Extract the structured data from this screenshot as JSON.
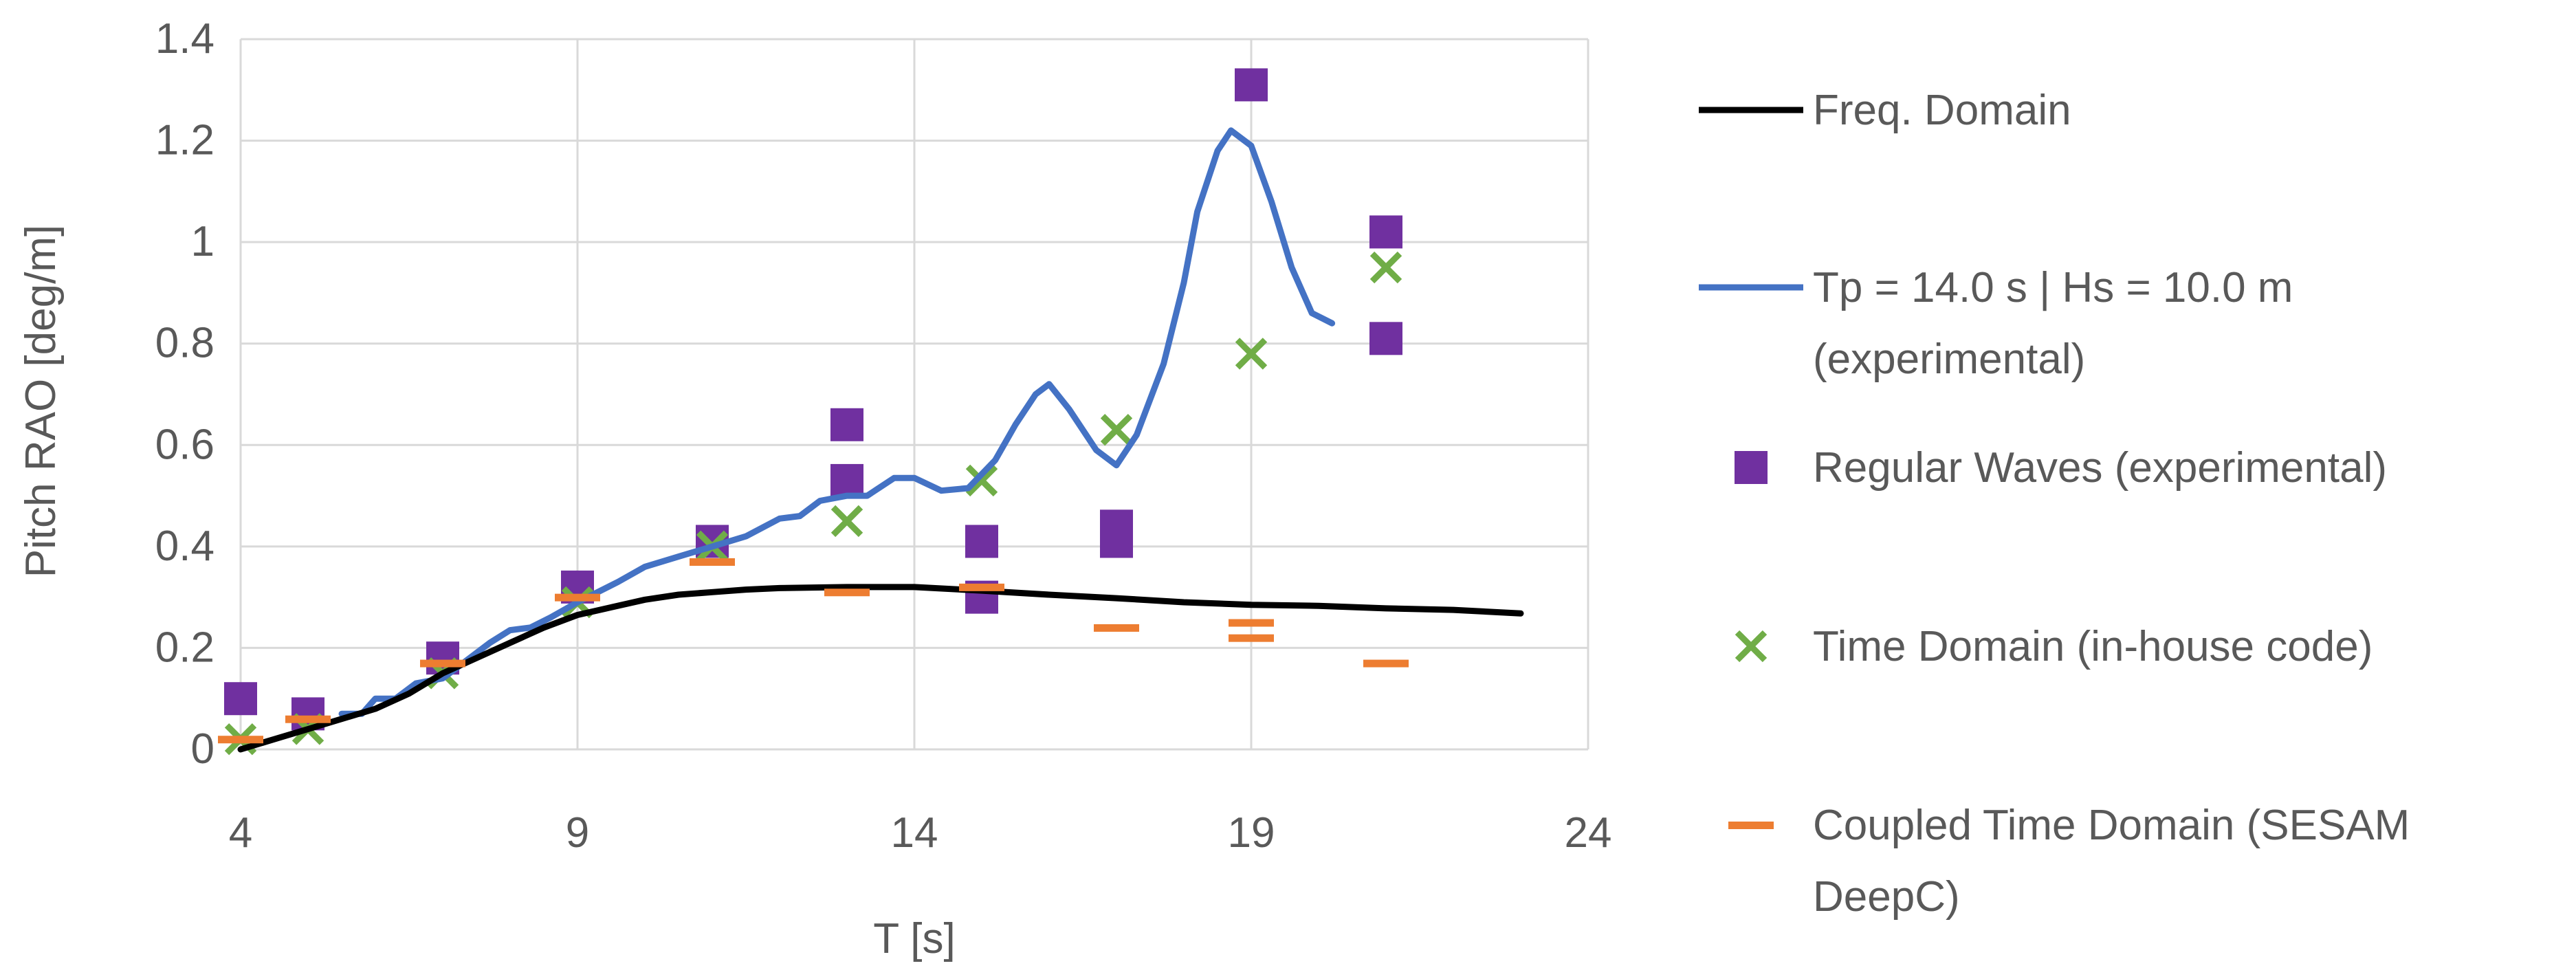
{
  "chart_data": {
    "type": "line",
    "xlabel": "T [s]",
    "ylabel": "Pitch RAO [deg/m]",
    "xlim": [
      4,
      24
    ],
    "ylim": [
      0,
      1.4
    ],
    "x_ticks": [
      "4",
      "9",
      "14",
      "19",
      "24"
    ],
    "y_ticks": [
      "0",
      "0.2",
      "0.4",
      "0.6",
      "0.8",
      "1",
      "1.2",
      "1.4"
    ],
    "grid": true,
    "legend_position": "right",
    "series": [
      {
        "name": "Freq. Domain",
        "kind": "line",
        "color": "#000000",
        "points": [
          [
            4,
            0.0
          ],
          [
            4.5,
            0.02
          ],
          [
            5,
            0.04
          ],
          [
            5.5,
            0.06
          ],
          [
            6,
            0.08
          ],
          [
            6.5,
            0.11
          ],
          [
            7,
            0.15
          ],
          [
            7.5,
            0.18
          ],
          [
            8,
            0.21
          ],
          [
            8.5,
            0.24
          ],
          [
            9,
            0.265
          ],
          [
            9.5,
            0.28
          ],
          [
            10,
            0.295
          ],
          [
            10.5,
            0.305
          ],
          [
            11,
            0.31
          ],
          [
            11.5,
            0.315
          ],
          [
            12,
            0.318
          ],
          [
            13,
            0.32
          ],
          [
            14,
            0.32
          ],
          [
            15,
            0.313
          ],
          [
            16,
            0.305
          ],
          [
            17,
            0.298
          ],
          [
            18,
            0.29
          ],
          [
            19,
            0.285
          ],
          [
            20,
            0.283
          ],
          [
            21,
            0.278
          ],
          [
            22,
            0.275
          ],
          [
            23,
            0.268
          ]
        ]
      },
      {
        "name": "Tp = 14.0 s | Hs = 10.0 m (experimental)",
        "legend_lines": [
          "Tp = 14.0 s | Hs = 10.0 m",
          "(experimental)"
        ],
        "kind": "line",
        "color": "#4472c4",
        "points": [
          [
            5.5,
            0.07
          ],
          [
            5.8,
            0.07
          ],
          [
            6,
            0.1
          ],
          [
            6.3,
            0.1
          ],
          [
            6.6,
            0.13
          ],
          [
            7,
            0.14
          ],
          [
            7.3,
            0.17
          ],
          [
            7.7,
            0.21
          ],
          [
            8,
            0.235
          ],
          [
            8.3,
            0.24
          ],
          [
            8.6,
            0.26
          ],
          [
            9,
            0.29
          ],
          [
            9.3,
            0.31
          ],
          [
            9.6,
            0.33
          ],
          [
            10,
            0.36
          ],
          [
            10.5,
            0.38
          ],
          [
            11,
            0.4
          ],
          [
            11.5,
            0.42
          ],
          [
            12,
            0.455
          ],
          [
            12.3,
            0.46
          ],
          [
            12.6,
            0.49
          ],
          [
            13,
            0.5
          ],
          [
            13.3,
            0.5
          ],
          [
            13.7,
            0.535
          ],
          [
            14,
            0.535
          ],
          [
            14.4,
            0.51
          ],
          [
            14.8,
            0.515
          ],
          [
            15.2,
            0.57
          ],
          [
            15.5,
            0.64
          ],
          [
            15.8,
            0.7
          ],
          [
            16,
            0.72
          ],
          [
            16.3,
            0.67
          ],
          [
            16.7,
            0.59
          ],
          [
            17,
            0.56
          ],
          [
            17.3,
            0.62
          ],
          [
            17.7,
            0.76
          ],
          [
            18,
            0.92
          ],
          [
            18.2,
            1.06
          ],
          [
            18.5,
            1.18
          ],
          [
            18.7,
            1.22
          ],
          [
            19,
            1.19
          ],
          [
            19.3,
            1.08
          ],
          [
            19.6,
            0.95
          ],
          [
            19.9,
            0.86
          ],
          [
            20.2,
            0.84
          ]
        ]
      },
      {
        "name": "Regular Waves (experimental)",
        "kind": "marker-square",
        "color": "#7030a0",
        "points": [
          [
            4,
            0.1
          ],
          [
            5,
            0.07
          ],
          [
            7,
            0.18
          ],
          [
            9,
            0.32
          ],
          [
            11,
            0.41
          ],
          [
            13,
            0.64
          ],
          [
            13,
            0.53
          ],
          [
            15,
            0.41
          ],
          [
            15,
            0.3
          ],
          [
            17,
            0.44
          ],
          [
            17,
            0.41
          ],
          [
            19,
            1.31
          ],
          [
            21,
            1.02
          ],
          [
            21,
            0.81
          ]
        ]
      },
      {
        "name": "Time Domain (in-house code)",
        "kind": "marker-x",
        "color": "#70ad47",
        "points": [
          [
            4,
            0.02
          ],
          [
            5,
            0.04
          ],
          [
            7,
            0.15
          ],
          [
            9,
            0.29
          ],
          [
            11,
            0.4
          ],
          [
            13,
            0.45
          ],
          [
            15,
            0.53
          ],
          [
            17,
            0.63
          ],
          [
            19,
            0.78
          ],
          [
            21,
            0.95
          ]
        ]
      },
      {
        "name": "Coupled Time Domain (SESAM DeepC)",
        "legend_lines": [
          "Coupled Time Domain (SESAM",
          "DeepC)"
        ],
        "kind": "marker-dash",
        "color": "#ed7d31",
        "points": [
          [
            4,
            0.02
          ],
          [
            5,
            0.06
          ],
          [
            7,
            0.17
          ],
          [
            9,
            0.3
          ],
          [
            11,
            0.37
          ],
          [
            13,
            0.31
          ],
          [
            15,
            0.32
          ],
          [
            17,
            0.24
          ],
          [
            19,
            0.25
          ],
          [
            19,
            0.22
          ],
          [
            21,
            0.17
          ]
        ]
      }
    ]
  }
}
